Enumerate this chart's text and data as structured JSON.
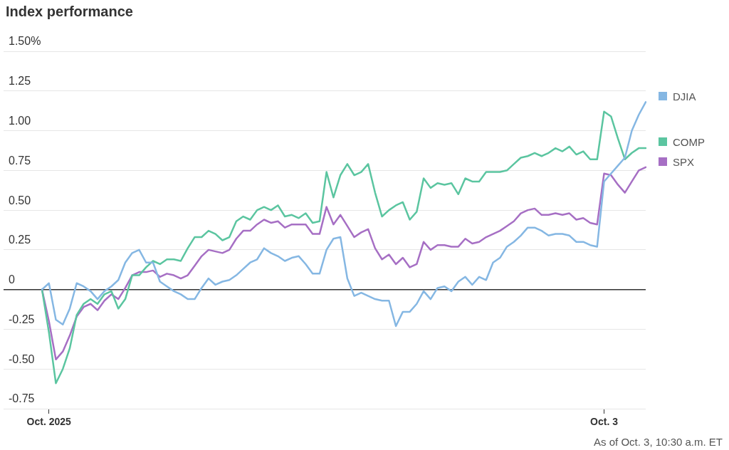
{
  "chart_data": {
    "type": "line",
    "title": "Index performance",
    "annotations": [
      "As of Oct. 3, 10:30 a.m. ET"
    ],
    "categories": [
      null,
      "Oct. 2025",
      null,
      null,
      null,
      null,
      null,
      null,
      null,
      null,
      null,
      null,
      null,
      null,
      null,
      null,
      null,
      null,
      null,
      null,
      null,
      null,
      null,
      null,
      null,
      null,
      null,
      null,
      null,
      null,
      null,
      null,
      null,
      null,
      null,
      null,
      null,
      null,
      null,
      null,
      null,
      null,
      null,
      null,
      null,
      null,
      null,
      null,
      null,
      null,
      null,
      null,
      null,
      null,
      null,
      null,
      null,
      null,
      null,
      null,
      null,
      null,
      null,
      null,
      null,
      null,
      null,
      null,
      null,
      null,
      null,
      null,
      null,
      null,
      null,
      null,
      null,
      null,
      null,
      null,
      null,
      "Oct. 3",
      null,
      null,
      null,
      null,
      null,
      null
    ],
    "series": [
      {
        "name": "DJIA",
        "color": "#85b7e3",
        "values": [
          0,
          0.04,
          -0.19,
          -0.22,
          -0.12,
          0.04,
          0.02,
          -0.01,
          -0.06,
          -0.01,
          0.02,
          0.06,
          0.17,
          0.23,
          0.25,
          0.17,
          0.17,
          0.05,
          0.02,
          -0.01,
          -0.03,
          -0.06,
          -0.06,
          0.01,
          0.07,
          0.03,
          0.05,
          0.06,
          0.09,
          0.13,
          0.17,
          0.19,
          0.26,
          0.23,
          0.21,
          0.18,
          0.2,
          0.21,
          0.16,
          0.1,
          0.1,
          0.25,
          0.32,
          0.33,
          0.07,
          -0.04,
          -0.02,
          -0.04,
          -0.06,
          -0.07,
          -0.07,
          -0.23,
          -0.14,
          -0.14,
          -0.09,
          -0.01,
          -0.06,
          0.01,
          0.02,
          -0.01,
          0.05,
          0.08,
          0.03,
          0.08,
          0.06,
          0.17,
          0.2,
          0.27,
          0.3,
          0.34,
          0.39,
          0.39,
          0.37,
          0.34,
          0.35,
          0.35,
          0.34,
          0.3,
          0.3,
          0.28,
          0.27,
          0.68,
          0.73,
          0.78,
          0.83,
          1.0,
          1.1,
          1.18
        ]
      },
      {
        "name": "COMP",
        "color": "#5bc5a0",
        "values": [
          0,
          -0.27,
          -0.59,
          -0.5,
          -0.37,
          -0.16,
          -0.09,
          -0.06,
          -0.09,
          -0.03,
          -0.01,
          -0.12,
          -0.06,
          0.09,
          0.09,
          0.14,
          0.18,
          0.16,
          0.19,
          0.19,
          0.18,
          0.26,
          0.33,
          0.33,
          0.37,
          0.35,
          0.31,
          0.33,
          0.43,
          0.46,
          0.44,
          0.5,
          0.52,
          0.5,
          0.53,
          0.46,
          0.47,
          0.45,
          0.48,
          0.42,
          0.43,
          0.74,
          0.58,
          0.72,
          0.79,
          0.72,
          0.74,
          0.79,
          0.61,
          0.46,
          0.5,
          0.53,
          0.55,
          0.44,
          0.49,
          0.7,
          0.64,
          0.67,
          0.66,
          0.67,
          0.6,
          0.7,
          0.68,
          0.68,
          0.74,
          0.74,
          0.74,
          0.75,
          0.79,
          0.83,
          0.84,
          0.86,
          0.84,
          0.86,
          0.89,
          0.87,
          0.9,
          0.85,
          0.87,
          0.82,
          0.82,
          1.12,
          1.09,
          0.95,
          0.82,
          0.86,
          0.89,
          0.89
        ]
      },
      {
        "name": "SPX",
        "color": "#a66fc4",
        "values": [
          0,
          -0.2,
          -0.44,
          -0.39,
          -0.29,
          -0.17,
          -0.11,
          -0.09,
          -0.13,
          -0.07,
          -0.03,
          -0.06,
          0.01,
          0.09,
          0.11,
          0.11,
          0.12,
          0.08,
          0.1,
          0.09,
          0.07,
          0.09,
          0.15,
          0.21,
          0.25,
          0.24,
          0.23,
          0.25,
          0.32,
          0.37,
          0.37,
          0.41,
          0.44,
          0.42,
          0.43,
          0.39,
          0.41,
          0.41,
          0.41,
          0.35,
          0.35,
          0.52,
          0.41,
          0.47,
          0.4,
          0.33,
          0.36,
          0.38,
          0.26,
          0.19,
          0.22,
          0.16,
          0.2,
          0.14,
          0.16,
          0.3,
          0.25,
          0.28,
          0.28,
          0.27,
          0.27,
          0.32,
          0.29,
          0.3,
          0.33,
          0.35,
          0.37,
          0.4,
          0.43,
          0.48,
          0.5,
          0.51,
          0.47,
          0.47,
          0.48,
          0.47,
          0.48,
          0.44,
          0.45,
          0.42,
          0.41,
          0.73,
          0.72,
          0.66,
          0.61,
          0.68,
          0.75,
          0.77
        ]
      }
    ],
    "ylim": [
      -0.75,
      1.5
    ],
    "yticks": [
      {
        "value": 1.5,
        "label": "1.50%"
      },
      1.25,
      {
        "value": 1,
        "label": "1.00"
      },
      0.75,
      {
        "value": 0.5,
        "label": "0.50"
      },
      0.25,
      0,
      -0.25,
      {
        "value": -0.5,
        "label": "-0.50"
      },
      -0.75
    ],
    "grid": "y",
    "legend": "right"
  }
}
